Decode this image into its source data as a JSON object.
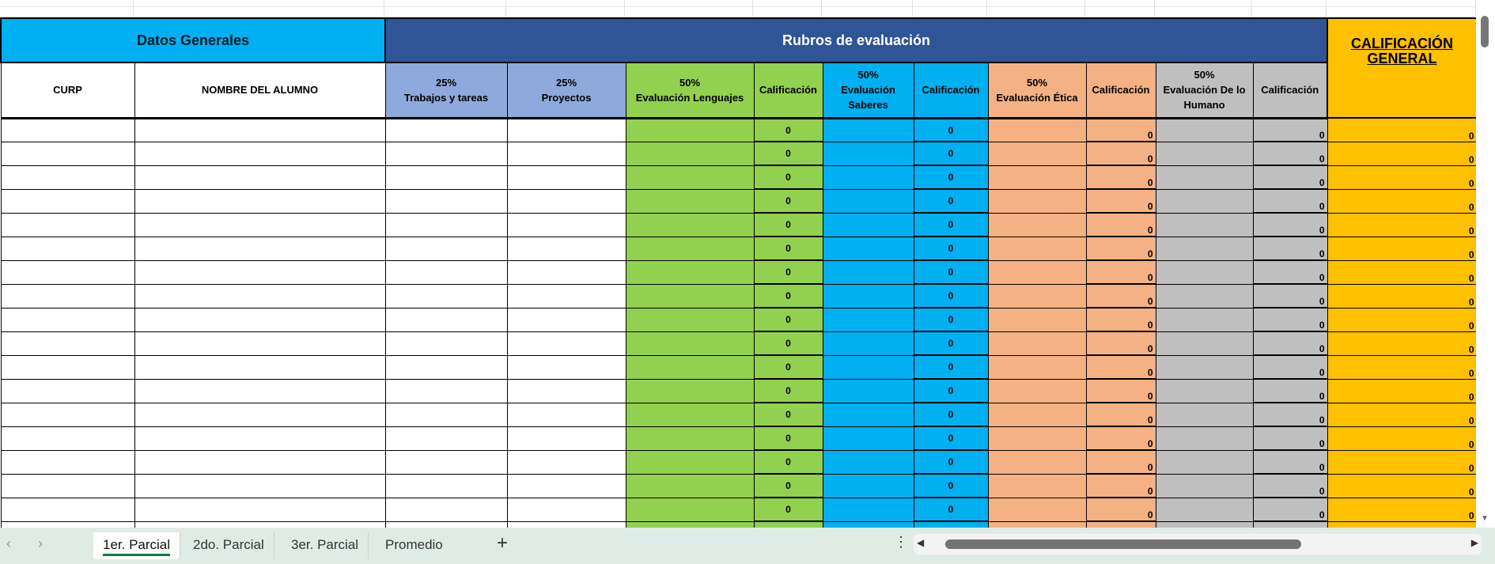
{
  "header": {
    "datos_generales": "Datos Generales",
    "rubros": "Rubros de evaluación",
    "calificacion_general": "CALIFICACIÓN GENERAL"
  },
  "columns": {
    "curp": "CURP",
    "nombre": "NOMBRE DEL ALUMNO",
    "trabajos_pct": "25%",
    "trabajos": "Trabajos y tareas",
    "proyectos_pct": "25%",
    "proyectos": "Proyectos",
    "lenguajes_pct": "50%",
    "lenguajes": "Evaluación Lenguajes",
    "calif": "Calificación",
    "saberes_pct": "50%",
    "saberes": "Evaluación Saberes",
    "etica_pct": "50%",
    "etica": "Evaluación Ética",
    "humano_pct": "50%",
    "humano": "Evaluación De lo Humano"
  },
  "rows": [
    {
      "v": "0"
    },
    {
      "v": "0"
    },
    {
      "v": "0"
    },
    {
      "v": "0"
    },
    {
      "v": "0"
    },
    {
      "v": "0"
    },
    {
      "v": "0"
    },
    {
      "v": "0"
    },
    {
      "v": "0"
    },
    {
      "v": "0"
    },
    {
      "v": "0"
    },
    {
      "v": "0"
    },
    {
      "v": "0"
    },
    {
      "v": "0"
    },
    {
      "v": "0"
    },
    {
      "v": "0"
    },
    {
      "v": "0"
    },
    {
      "v": ""
    }
  ],
  "tabs": [
    {
      "label": "1er. Parcial",
      "active": true
    },
    {
      "label": "2do. Parcial"
    },
    {
      "label": "3er. Parcial"
    },
    {
      "label": "Promedio"
    }
  ],
  "icons": {
    "prev": "chevron-left-icon",
    "next": "chevron-right-icon",
    "add": "plus-icon",
    "more": "vertical-ellipsis-icon"
  },
  "colors": {
    "datos": "#00B0F0",
    "rubros": "#2F5597",
    "light_blue": "#8EA9DB",
    "green": "#92D050",
    "blue": "#00B0F0",
    "salmon": "#F4B183",
    "gray": "#BFBFBF",
    "gold": "#FFC000",
    "active_tab": "#107C41"
  }
}
